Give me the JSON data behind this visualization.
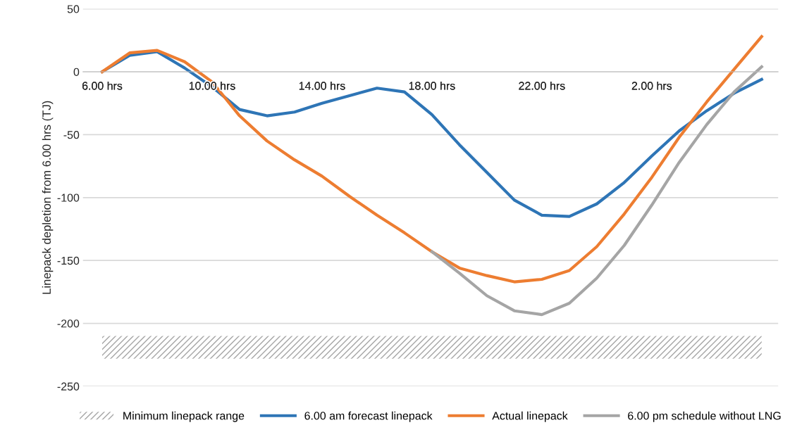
{
  "chart_data": {
    "type": "line",
    "ylabel": "Linepack depletion from 6.00 hrs (TJ)",
    "categories": [
      "6.00 hrs",
      null,
      null,
      null,
      "10.00 hrs",
      null,
      null,
      null,
      "14.00 hrs",
      null,
      null,
      null,
      "18.00 hrs",
      null,
      null,
      null,
      "22.00 hrs",
      null,
      null,
      null,
      "2.00 hrs",
      null,
      null,
      null,
      null
    ],
    "series": [
      {
        "name": "6.00 am forecast linepack",
        "color": "#2e75b6",
        "values": [
          0,
          13,
          16,
          3,
          -12,
          -30,
          -35,
          -32,
          -25,
          -19,
          -13,
          -16,
          -34,
          -58,
          -80,
          -102,
          -114,
          -115,
          -105,
          -88,
          -67,
          -47,
          -31,
          -17,
          -6
        ]
      },
      {
        "name": "Actual linepack",
        "color": "#ed7d31",
        "values": [
          0,
          15,
          17,
          8,
          -8,
          -35,
          -55,
          -70,
          -83,
          -99,
          -114,
          -128,
          -143,
          -156,
          -162,
          -167,
          -165,
          -158,
          -139,
          -113,
          -84,
          -52,
          -24,
          2,
          28
        ]
      },
      {
        "name": "6.00 pm schedule without LNG",
        "color": "#a5a5a5",
        "values": [
          null,
          null,
          null,
          null,
          null,
          null,
          null,
          null,
          null,
          null,
          null,
          null,
          -143,
          -160,
          -178,
          -190,
          -193,
          -184,
          -164,
          -138,
          -106,
          -72,
          -42,
          -16,
          4
        ]
      }
    ],
    "bands": [
      {
        "axis": "y",
        "from": -228,
        "to": -210,
        "label": "Minimum linepack range",
        "color": "#a5a5a5"
      }
    ],
    "ylim": [
      -250,
      50
    ],
    "yticks": [
      -250,
      -200,
      -150,
      -100,
      -50,
      0,
      50
    ],
    "grid": "y",
    "legend": "bottom",
    "line_style": "solid",
    "marker": "none"
  }
}
